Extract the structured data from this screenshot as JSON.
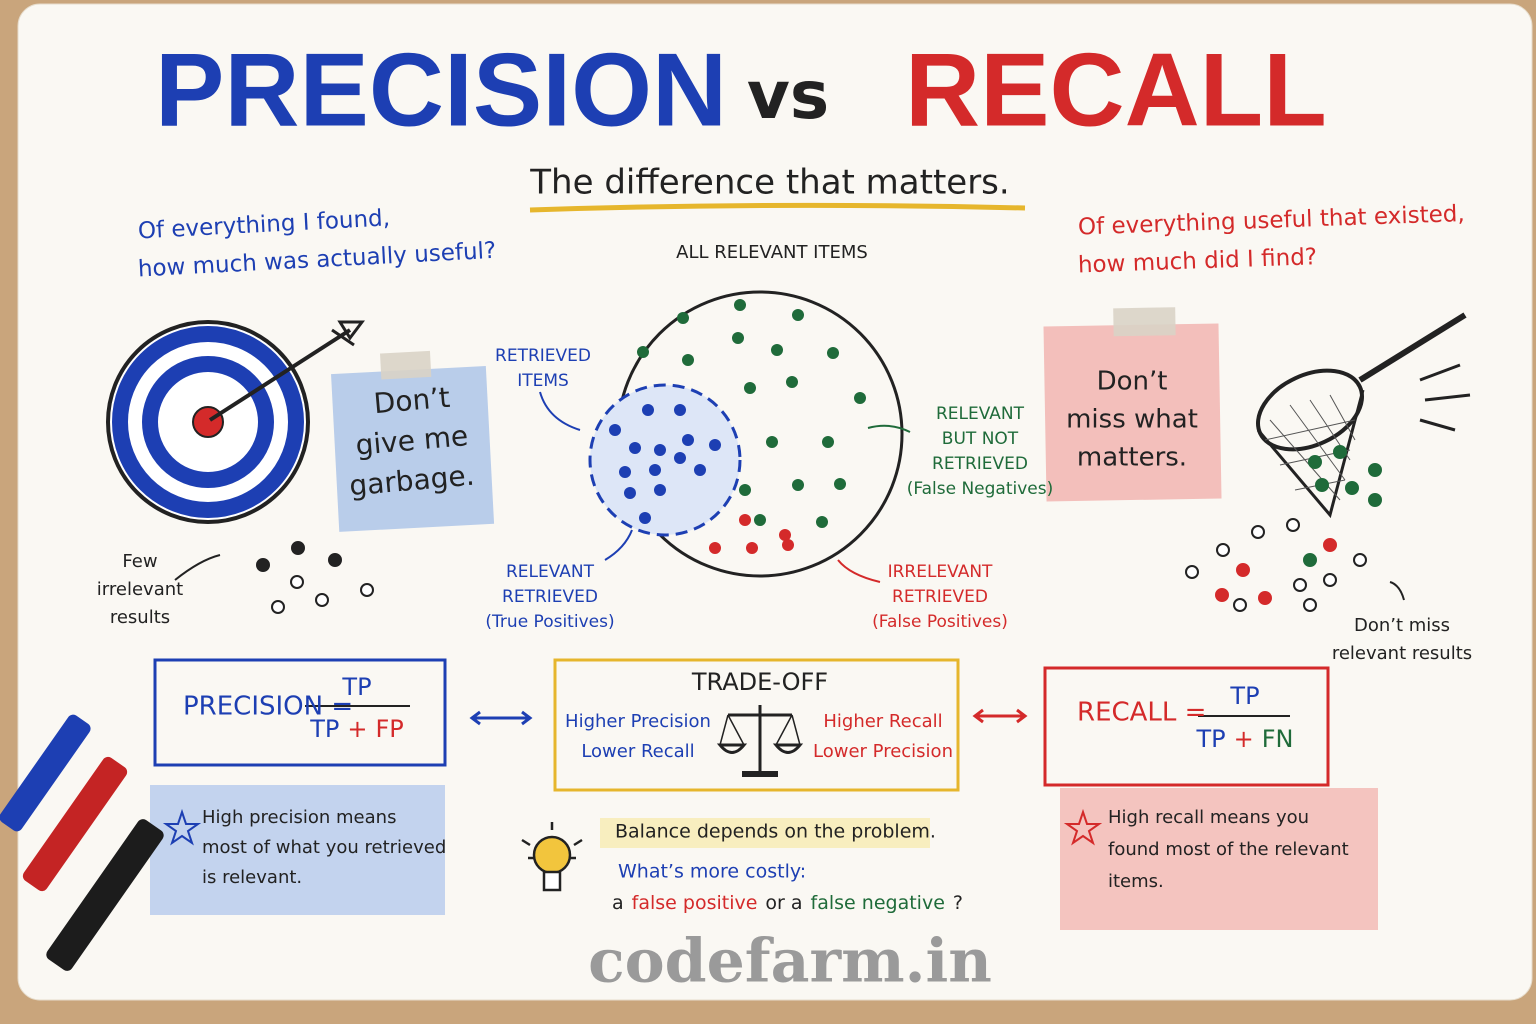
{
  "header": {
    "title_left": "PRECISION",
    "title_vs": "vs",
    "title_right": "RECALL",
    "subtitle": "The difference that matters."
  },
  "precision_side": {
    "question": [
      "Of everything I found,",
      "how much was actually useful?"
    ],
    "sticky_note": [
      "Don’t",
      "give me",
      "garbage."
    ],
    "caption": [
      "Few",
      "irrelevant",
      "results"
    ]
  },
  "recall_side": {
    "question": [
      "Of everything useful that existed,",
      "how much did I find?"
    ],
    "sticky_note": [
      "Don’t",
      "miss what",
      "matters."
    ],
    "caption": [
      "Don’t miss",
      "relevant results"
    ]
  },
  "diagram": {
    "title": "ALL RELEVANT ITEMS",
    "retrieved": [
      "RETRIEVED",
      "ITEMS"
    ],
    "false_negatives": [
      "RELEVANT",
      "BUT NOT",
      "RETRIEVED",
      "(False Negatives)"
    ],
    "true_positives": [
      "RELEVANT",
      "RETRIEVED",
      "(True Positives)"
    ],
    "false_positives": [
      "IRRELEVANT",
      "RETRIEVED",
      "(False Positives)"
    ]
  },
  "formulas": {
    "precision": {
      "label": "PRECISION =",
      "numerator": "TP",
      "denominator": [
        "TP",
        "+",
        "FP"
      ]
    },
    "recall": {
      "label": "RECALL =",
      "numerator": "TP",
      "denominator": [
        "TP",
        "+",
        "FN"
      ]
    }
  },
  "trade_off": {
    "title": "TRADE-OFF",
    "left": [
      "Higher Precision",
      "Lower Recall"
    ],
    "right": [
      "Higher Recall",
      "Lower Precision"
    ]
  },
  "notes": {
    "precision": [
      "High precision means",
      "most of what you retrieved",
      "is relevant."
    ],
    "recall": [
      "High recall means you",
      "found most of the relevant",
      "items."
    ]
  },
  "balance": {
    "lines": [
      "Balance depends on the problem.",
      "What’s more costly:"
    ],
    "question": [
      "a",
      "false positive",
      "or a",
      "false negative",
      "?"
    ]
  },
  "watermark": "codefarm.in"
}
